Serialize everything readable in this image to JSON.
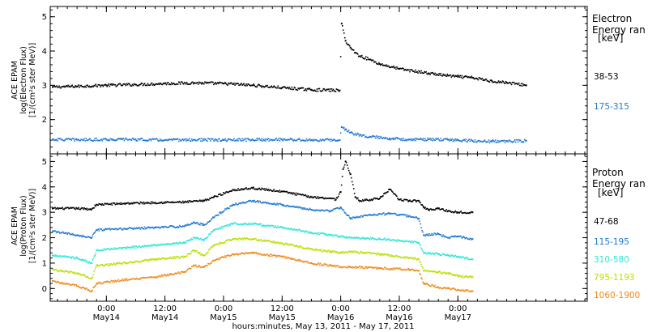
{
  "chart_data": [
    {
      "type": "scatter",
      "panel": "electron",
      "ylabel_lines": [
        "ACE EPAM",
        "log(Electron Flux)",
        "[1/(cm²s ster MeV)]"
      ],
      "legend_title_lines": [
        "Electron",
        "Energy ran",
        "[keV]"
      ],
      "ylim": [
        1.0,
        5.3
      ],
      "yticks": [
        2,
        3,
        4,
        5
      ],
      "series": [
        {
          "name": "38-53",
          "color": "#000000",
          "points": [
            [
              -11,
              2.95
            ],
            [
              -6,
              2.97
            ],
            [
              0,
              3.0
            ],
            [
              6,
              3.02
            ],
            [
              12,
              3.05
            ],
            [
              18,
              3.07
            ],
            [
              24,
              3.05
            ],
            [
              30,
              3.0
            ],
            [
              36,
              2.93
            ],
            [
              42,
              2.87
            ],
            [
              47.8,
              2.85
            ],
            [
              48.2,
              4.8
            ],
            [
              49,
              4.3
            ],
            [
              50,
              4.1
            ],
            [
              51,
              3.95
            ],
            [
              52,
              3.85
            ],
            [
              54,
              3.75
            ],
            [
              56,
              3.62
            ],
            [
              60,
              3.48
            ],
            [
              66,
              3.35
            ],
            [
              70,
              3.28
            ],
            [
              72,
              3.25
            ],
            [
              75,
              3.22
            ],
            [
              79,
              3.12
            ],
            [
              82,
              3.08
            ],
            [
              86,
              3.0
            ]
          ]
        },
        {
          "name": "175-315",
          "color": "#1f78d4",
          "points": [
            [
              -11,
              1.42
            ],
            [
              -6,
              1.41
            ],
            [
              0,
              1.42
            ],
            [
              6,
              1.42
            ],
            [
              12,
              1.4
            ],
            [
              18,
              1.41
            ],
            [
              24,
              1.4
            ],
            [
              30,
              1.41
            ],
            [
              36,
              1.42
            ],
            [
              42,
              1.4
            ],
            [
              47.8,
              1.4
            ],
            [
              48.2,
              1.78
            ],
            [
              49,
              1.72
            ],
            [
              50,
              1.62
            ],
            [
              52,
              1.55
            ],
            [
              54,
              1.5
            ],
            [
              58,
              1.45
            ],
            [
              62,
              1.42
            ],
            [
              66,
              1.42
            ],
            [
              70,
              1.41
            ],
            [
              72,
              1.4
            ],
            [
              75,
              1.38
            ],
            [
              79,
              1.36
            ],
            [
              82,
              1.37
            ],
            [
              86,
              1.38
            ]
          ]
        }
      ]
    },
    {
      "type": "scatter",
      "panel": "proton",
      "ylabel_lines": [
        "ACE EPAM",
        "log(Proton Flux)",
        "[1/(cm²s ster MeV)]"
      ],
      "legend_title_lines": [
        "Proton",
        "Energy ran",
        "[keV]"
      ],
      "xlabel": "hours:minutes, May 13, 2011 - May 17, 2011",
      "xlim": [
        -11.5,
        98.5
      ],
      "xticks": [
        {
          "x": 0,
          "time": "0:00",
          "date": "May14"
        },
        {
          "x": 12,
          "time": "12:00",
          "date": "May14"
        },
        {
          "x": 24,
          "time": "0:00",
          "date": "May15"
        },
        {
          "x": 36,
          "time": "12:00",
          "date": "May15"
        },
        {
          "x": 48,
          "time": "0:00",
          "date": "May16"
        },
        {
          "x": 60,
          "time": "12:00",
          "date": "May16"
        },
        {
          "x": 72,
          "time": "0:00",
          "date": "May17"
        }
      ],
      "ylim": [
        -0.5,
        5.3
      ],
      "yticks": [
        0,
        1,
        2,
        3,
        4,
        5
      ],
      "series": [
        {
          "name": "47-68",
          "color": "#000000",
          "points": [
            [
              -11,
              3.15
            ],
            [
              -6,
              3.15
            ],
            [
              -3,
              3.12
            ],
            [
              -2,
              3.3
            ],
            [
              4,
              3.35
            ],
            [
              10,
              3.38
            ],
            [
              16,
              3.4
            ],
            [
              20,
              3.45
            ],
            [
              22,
              3.6
            ],
            [
              26,
              3.88
            ],
            [
              30,
              3.95
            ],
            [
              36,
              3.82
            ],
            [
              42,
              3.6
            ],
            [
              46,
              3.55
            ],
            [
              47,
              3.5
            ],
            [
              48,
              3.8
            ],
            [
              48.5,
              4.7
            ],
            [
              49,
              5.0
            ],
            [
              50,
              4.5
            ],
            [
              51,
              3.6
            ],
            [
              52,
              3.45
            ],
            [
              56,
              3.55
            ],
            [
              58,
              3.9
            ],
            [
              60,
              3.5
            ],
            [
              62,
              3.45
            ],
            [
              64,
              3.45
            ],
            [
              65,
              3.2
            ],
            [
              66,
              3.1
            ],
            [
              68,
              3.15
            ],
            [
              70,
              3.05
            ],
            [
              72,
              3.0
            ],
            [
              75,
              3.0
            ]
          ]
        },
        {
          "name": "115-195",
          "color": "#1f78d4",
          "points": [
            [
              -11,
              2.25
            ],
            [
              -6,
              2.1
            ],
            [
              -3,
              2.0
            ],
            [
              -2,
              2.3
            ],
            [
              4,
              2.35
            ],
            [
              10,
              2.4
            ],
            [
              16,
              2.45
            ],
            [
              18,
              2.6
            ],
            [
              20,
              2.5
            ],
            [
              22,
              2.8
            ],
            [
              26,
              3.3
            ],
            [
              30,
              3.45
            ],
            [
              36,
              3.3
            ],
            [
              42,
              3.1
            ],
            [
              46,
              3.05
            ],
            [
              48,
              3.2
            ],
            [
              50,
              2.75
            ],
            [
              54,
              2.9
            ],
            [
              58,
              2.95
            ],
            [
              62,
              2.85
            ],
            [
              64,
              2.75
            ],
            [
              65,
              2.1
            ],
            [
              68,
              2.15
            ],
            [
              70,
              2.0
            ],
            [
              72,
              2.05
            ],
            [
              75,
              1.95
            ]
          ]
        },
        {
          "name": "310-580",
          "color": "#2ee6d6",
          "points": [
            [
              -11,
              1.3
            ],
            [
              -6,
              1.2
            ],
            [
              -3,
              1.0
            ],
            [
              -2,
              1.5
            ],
            [
              4,
              1.6
            ],
            [
              10,
              1.7
            ],
            [
              16,
              1.8
            ],
            [
              18,
              2.0
            ],
            [
              20,
              1.9
            ],
            [
              22,
              2.3
            ],
            [
              26,
              2.55
            ],
            [
              30,
              2.55
            ],
            [
              36,
              2.4
            ],
            [
              42,
              2.2
            ],
            [
              46,
              2.1
            ],
            [
              48,
              2.05
            ],
            [
              50,
              2.0
            ],
            [
              56,
              1.95
            ],
            [
              62,
              1.85
            ],
            [
              64,
              1.8
            ],
            [
              65,
              1.4
            ],
            [
              68,
              1.35
            ],
            [
              70,
              1.3
            ],
            [
              72,
              1.25
            ],
            [
              75,
              1.15
            ]
          ]
        },
        {
          "name": "795-1193",
          "color": "#b8e000",
          "points": [
            [
              -11,
              0.75
            ],
            [
              -6,
              0.6
            ],
            [
              -3,
              0.4
            ],
            [
              -2,
              0.9
            ],
            [
              4,
              1.0
            ],
            [
              10,
              1.15
            ],
            [
              16,
              1.25
            ],
            [
              18,
              1.5
            ],
            [
              20,
              1.3
            ],
            [
              22,
              1.7
            ],
            [
              26,
              1.95
            ],
            [
              30,
              1.95
            ],
            [
              36,
              1.78
            ],
            [
              42,
              1.55
            ],
            [
              46,
              1.45
            ],
            [
              48,
              1.4
            ],
            [
              50,
              1.45
            ],
            [
              56,
              1.35
            ],
            [
              62,
              1.2
            ],
            [
              64,
              1.15
            ],
            [
              65,
              0.7
            ],
            [
              68,
              0.65
            ],
            [
              70,
              0.6
            ],
            [
              72,
              0.5
            ],
            [
              75,
              0.45
            ]
          ]
        },
        {
          "name": "1060-1900",
          "color": "#f08a1a",
          "points": [
            [
              -11,
              0.3
            ],
            [
              -6,
              0.1
            ],
            [
              -3,
              -0.1
            ],
            [
              -2,
              0.2
            ],
            [
              4,
              0.35
            ],
            [
              10,
              0.45
            ],
            [
              16,
              0.65
            ],
            [
              18,
              0.9
            ],
            [
              20,
              0.85
            ],
            [
              22,
              1.1
            ],
            [
              26,
              1.35
            ],
            [
              30,
              1.4
            ],
            [
              36,
              1.25
            ],
            [
              42,
              1.0
            ],
            [
              46,
              0.9
            ],
            [
              48,
              0.85
            ],
            [
              50,
              0.85
            ],
            [
              56,
              0.8
            ],
            [
              62,
              0.75
            ],
            [
              64,
              0.7
            ],
            [
              65,
              0.2
            ],
            [
              68,
              0.05
            ],
            [
              70,
              0.0
            ],
            [
              72,
              -0.05
            ],
            [
              75,
              -0.1
            ]
          ]
        }
      ]
    }
  ]
}
